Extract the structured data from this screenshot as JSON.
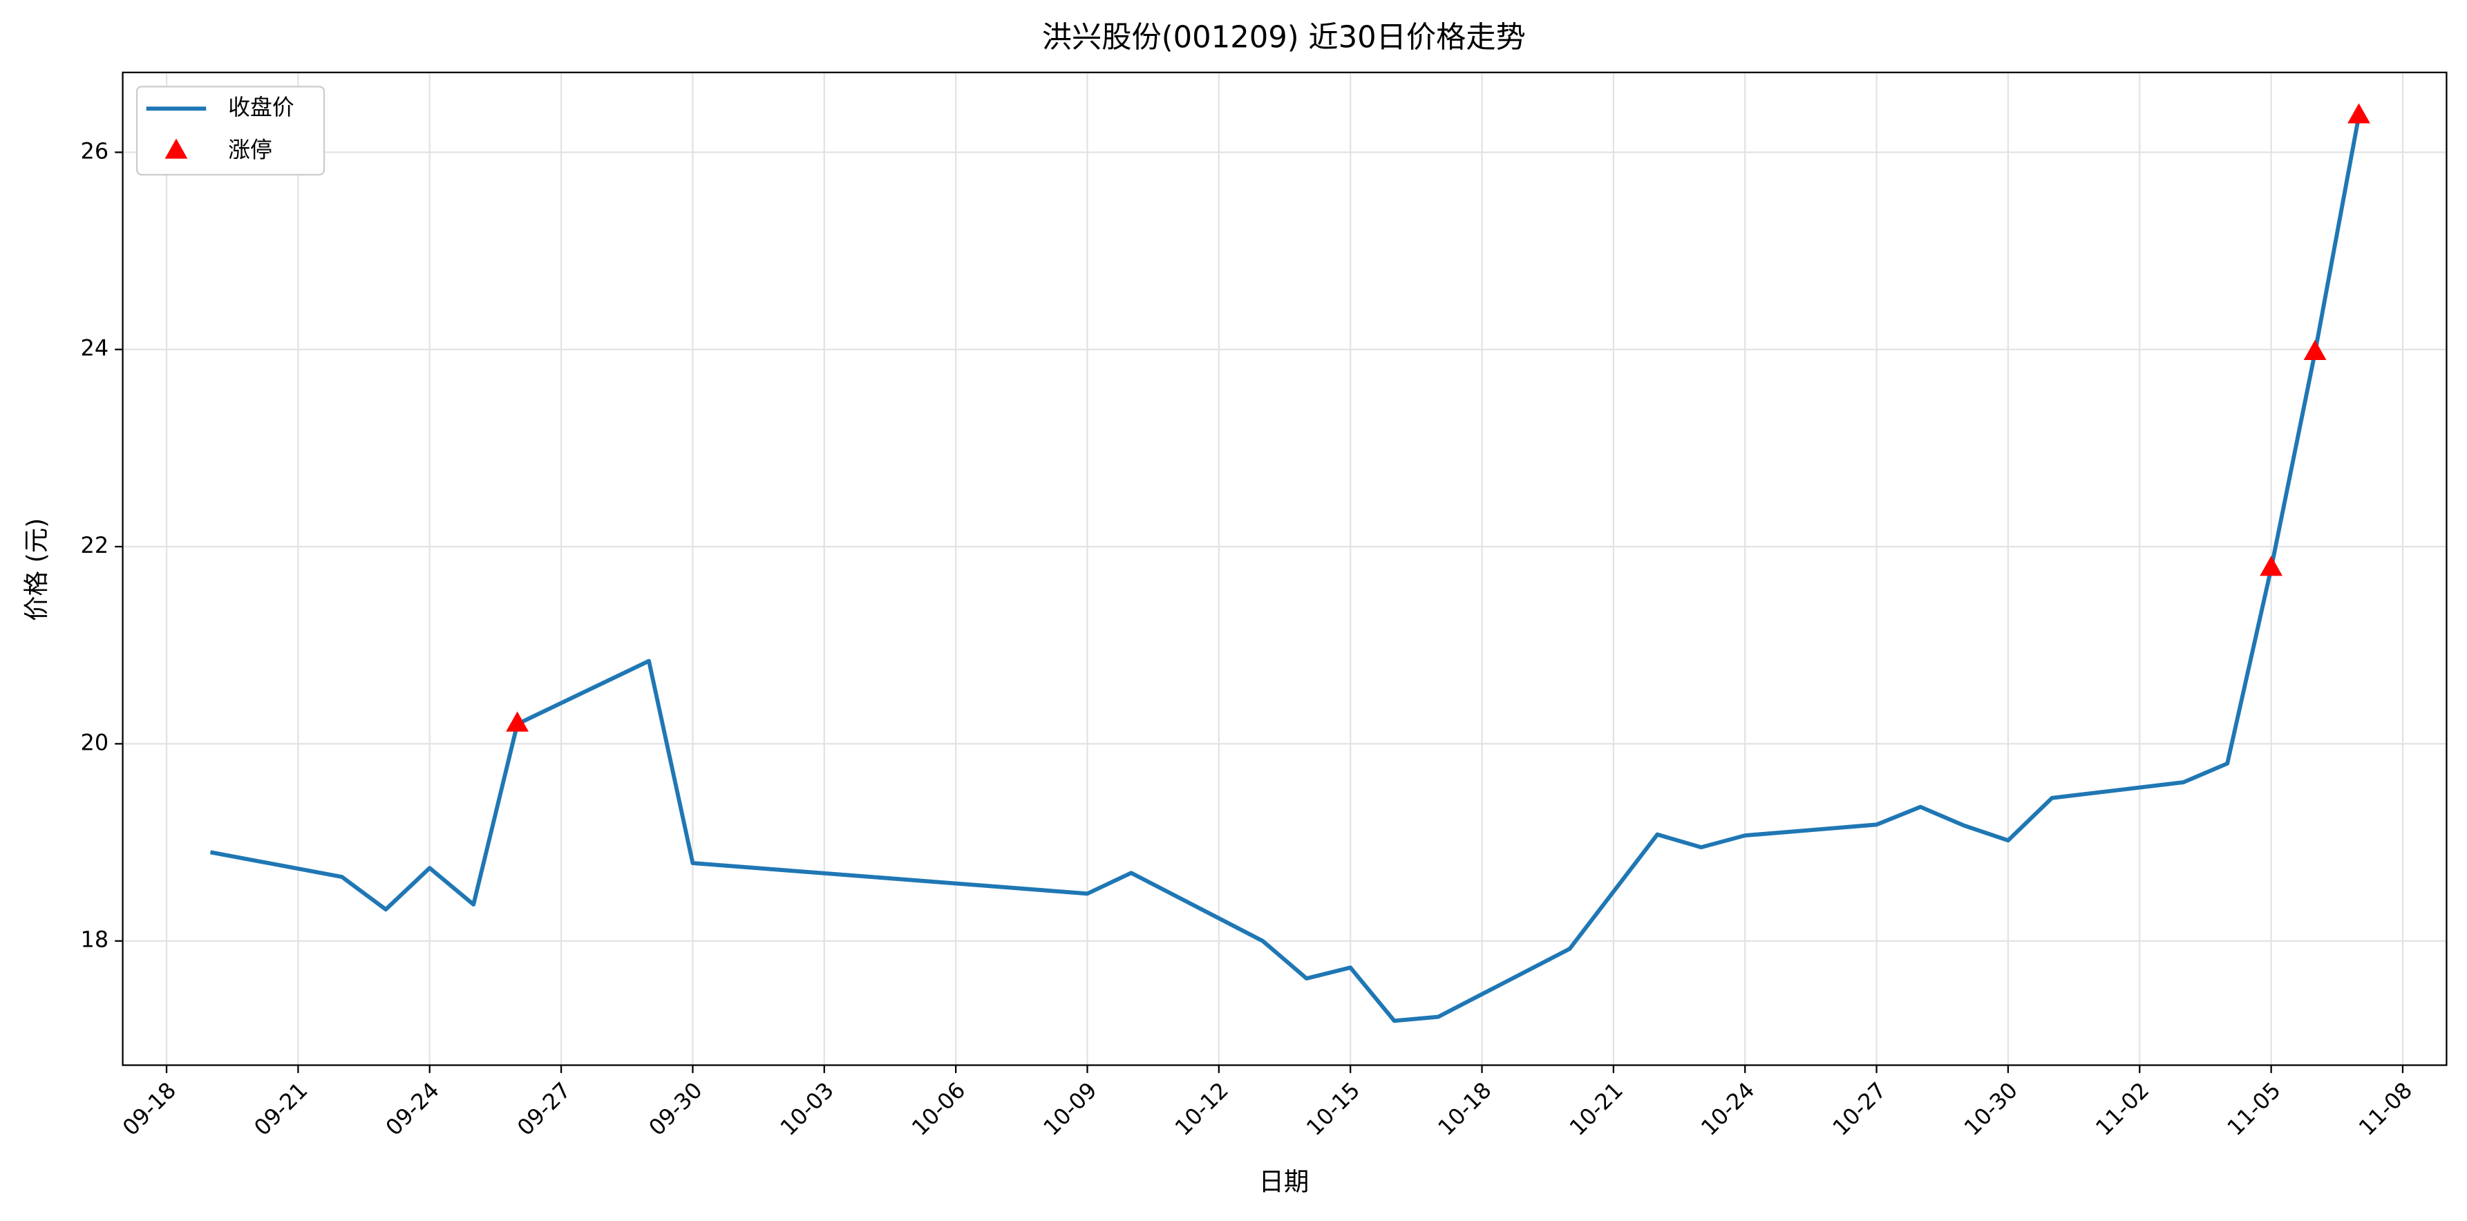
{
  "chart_data": {
    "type": "line",
    "title": "洪兴股份(001209) 近30日价格走势",
    "x_label": "日期",
    "y_label": "价格 (元)",
    "x": [
      "09-19",
      "09-22",
      "09-23",
      "09-24",
      "09-25",
      "09-26",
      "09-29",
      "09-30",
      "10-09",
      "10-10",
      "10-13",
      "10-14",
      "10-15",
      "10-16",
      "10-17",
      "10-20",
      "10-22",
      "10-23",
      "10-24",
      "10-27",
      "10-28",
      "10-29",
      "10-30",
      "10-31",
      "11-03",
      "11-04",
      "11-05",
      "11-06",
      "11-07"
    ],
    "series": [
      {
        "name": "收盘价",
        "color": "#1f77b4",
        "values": [
          18.9,
          18.65,
          18.32,
          18.74,
          18.37,
          20.2,
          20.84,
          18.79,
          18.48,
          18.69,
          18.0,
          17.62,
          17.73,
          17.19,
          17.23,
          17.92,
          19.08,
          18.95,
          19.07,
          19.18,
          19.36,
          19.17,
          19.02,
          19.45,
          19.61,
          19.8,
          21.78,
          23.97,
          26.37
        ]
      },
      {
        "name": "涨停",
        "color": "#ff0000",
        "marker": "triangle",
        "x": [
          "09-26",
          "11-05",
          "11-06",
          "11-07"
        ],
        "values": [
          20.2,
          21.78,
          23.97,
          26.37
        ]
      }
    ],
    "xlim": [
      "09-17",
      "11-09"
    ],
    "xticks": [
      "09-18",
      "09-21",
      "09-24",
      "09-27",
      "09-30",
      "10-03",
      "10-06",
      "10-09",
      "10-12",
      "10-15",
      "10-18",
      "10-21",
      "10-24",
      "10-27",
      "10-30",
      "11-02",
      "11-05",
      "11-08"
    ],
    "ylim": [
      16.74,
      26.81
    ],
    "yticks": [
      18,
      20,
      22,
      24,
      26
    ],
    "grid": true,
    "legend": "upper left"
  }
}
